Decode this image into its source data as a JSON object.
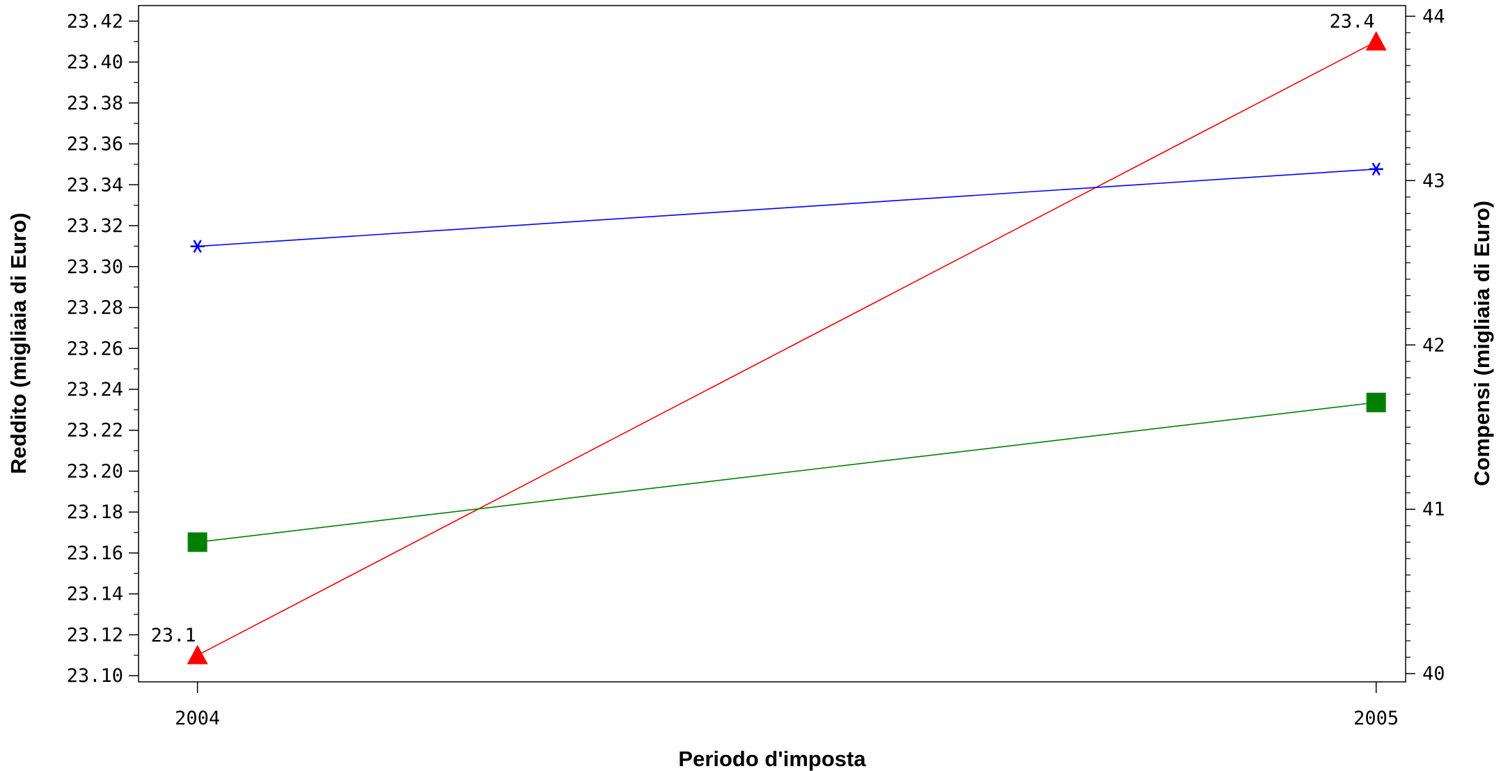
{
  "chart_data": {
    "type": "line",
    "title": "",
    "xlabel": "Periodo d'imposta",
    "ylabel": "Reddito (migliaia di Euro)",
    "y2label": "Compensi (migliaia di Euro)",
    "x": [
      "2004",
      "2005"
    ],
    "xlim": [
      2003.95,
      2005.025
    ],
    "ylim": [
      23.097,
      23.4276
    ],
    "y_ticks": [
      "23.10",
      "23.12",
      "23.14",
      "23.16",
      "23.18",
      "23.20",
      "23.22",
      "23.24",
      "23.26",
      "23.28",
      "23.30",
      "23.32",
      "23.34",
      "23.36",
      "23.38",
      "23.40",
      "23.42"
    ],
    "y2lim": [
      39.95,
      44.065
    ],
    "y2_ticks": [
      "40",
      "41",
      "42",
      "43",
      "44"
    ],
    "grid": false,
    "series": [
      {
        "axis": "left",
        "color": "#ff0000",
        "marker": "triangle",
        "values": [
          23.11,
          23.41
        ],
        "labels": [
          "23.1",
          "23.4"
        ]
      },
      {
        "axis": "right",
        "color": "#0000ff",
        "marker": "asterisk",
        "values": [
          42.6,
          43.07
        ],
        "labels": [
          "",
          ""
        ]
      },
      {
        "axis": "right",
        "color": "#008000",
        "marker": "square",
        "values": [
          40.8,
          41.65
        ],
        "labels": [
          "",
          ""
        ]
      }
    ]
  }
}
